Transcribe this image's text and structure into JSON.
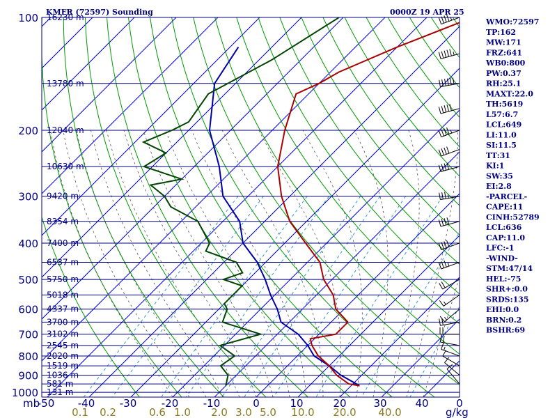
{
  "header": {
    "station": "KMFR (72597) Sounding",
    "time": "0000Z 19 APR 25"
  },
  "indices": [
    "WMO:72597",
    "TP:162",
    "MW:171",
    "FRZ:641",
    "WB0:800",
    "PW:0.37",
    "RH:25.1",
    "MAXT:22.0",
    "TH:5619",
    "L57:6.7",
    "LCL:649",
    "LI:11.0",
    "SI:11.5",
    "TT:31",
    "KI:1",
    "SW:35",
    "EI:2.8",
    "-PARCEL-",
    "CAPE:11",
    "CINH:52789",
    "LCL:636",
    "CAP:11.0",
    "LFC:-1",
    "-WIND-",
    "STM:47/14",
    "HEL:-75",
    "SHR+:0.0",
    "SRDS:135",
    "EHI:0.0",
    "BRN:0.2",
    "BSHR:69"
  ],
  "colors": {
    "isobar": "#000080",
    "isotherm": "#0000cd",
    "dry_adiabat": "#009900",
    "moist_adiabat": "#555555",
    "mixing_ratio": "#3399cc",
    "temperature": "#aa0000",
    "dewpoint": "#004400",
    "parcel": "#0000aa"
  },
  "chart_data": {
    "type": "skew-t",
    "title": "KMFR (72597) Sounding",
    "pressure_ticks": [
      "100",
      "200",
      "300",
      "400",
      "500",
      "600",
      "700",
      "800",
      "900",
      "1000"
    ],
    "pressure_unit": "mb",
    "temperature_ticks": [
      "-50",
      "-40",
      "-30",
      "-20",
      "-10",
      "0",
      "10",
      "20",
      "30",
      "40",
      "0"
    ],
    "mixing_ratio_ticks": [
      "0.1",
      "0.2",
      "0.6",
      "1.0",
      "2.0",
      "3.0",
      "5.0",
      "10.0",
      "20.0",
      "40.0"
    ],
    "mixing_ratio_unit": "g/kg",
    "height_levels": [
      {
        "p": 100,
        "label": "16230 m"
      },
      {
        "p": 150,
        "label": "13780 m"
      },
      {
        "p": 200,
        "label": "12040 m"
      },
      {
        "p": 250,
        "label": "10630 m"
      },
      {
        "p": 300,
        "label": "9420 m"
      },
      {
        "p": 350,
        "label": "8354 m"
      },
      {
        "p": 400,
        "label": "7400 m"
      },
      {
        "p": 450,
        "label": "6537 m"
      },
      {
        "p": 500,
        "label": "5750 m"
      },
      {
        "p": 550,
        "label": "5018 m"
      },
      {
        "p": 600,
        "label": "4337 m"
      },
      {
        "p": 650,
        "label": "3700 m"
      },
      {
        "p": 700,
        "label": "3102 m"
      },
      {
        "p": 750,
        "label": "2545 m"
      },
      {
        "p": 800,
        "label": "2020 m"
      },
      {
        "p": 850,
        "label": "1519 m"
      },
      {
        "p": 900,
        "label": "1036 m"
      },
      {
        "p": 950,
        "label": "581 m"
      },
      {
        "p": 1000,
        "label": "131 m"
      }
    ],
    "temperature_profile": [
      {
        "p": 100,
        "t": -39
      },
      {
        "p": 120,
        "t": -50
      },
      {
        "p": 140,
        "t": -58
      },
      {
        "p": 150,
        "t": -60
      },
      {
        "p": 160,
        "t": -63
      },
      {
        "p": 200,
        "t": -57
      },
      {
        "p": 250,
        "t": -50
      },
      {
        "p": 300,
        "t": -42
      },
      {
        "p": 350,
        "t": -34
      },
      {
        "p": 400,
        "t": -25
      },
      {
        "p": 450,
        "t": -17
      },
      {
        "p": 500,
        "t": -12
      },
      {
        "p": 550,
        "t": -6
      },
      {
        "p": 600,
        "t": -2
      },
      {
        "p": 650,
        "t": 4
      },
      {
        "p": 700,
        "t": 4
      },
      {
        "p": 720,
        "t": -1
      },
      {
        "p": 750,
        "t": 1
      },
      {
        "p": 800,
        "t": 5
      },
      {
        "p": 850,
        "t": 10
      },
      {
        "p": 900,
        "t": 14
      },
      {
        "p": 950,
        "t": 19
      },
      {
        "p": 960,
        "t": 22
      }
    ],
    "dewpoint_profile": [
      {
        "p": 100,
        "t": -71
      },
      {
        "p": 130,
        "t": -77
      },
      {
        "p": 160,
        "t": -84
      },
      {
        "p": 190,
        "t": -82
      },
      {
        "p": 200,
        "t": -84
      },
      {
        "p": 215,
        "t": -88
      },
      {
        "p": 230,
        "t": -80
      },
      {
        "p": 250,
        "t": -82
      },
      {
        "p": 270,
        "t": -70
      },
      {
        "p": 280,
        "t": -76
      },
      {
        "p": 300,
        "t": -70
      },
      {
        "p": 320,
        "t": -66
      },
      {
        "p": 350,
        "t": -56
      },
      {
        "p": 400,
        "t": -48
      },
      {
        "p": 420,
        "t": -47
      },
      {
        "p": 450,
        "t": -37
      },
      {
        "p": 480,
        "t": -33
      },
      {
        "p": 500,
        "t": -36
      },
      {
        "p": 520,
        "t": -30
      },
      {
        "p": 550,
        "t": -30
      },
      {
        "p": 580,
        "t": -30
      },
      {
        "p": 600,
        "t": -28
      },
      {
        "p": 650,
        "t": -26
      },
      {
        "p": 700,
        "t": -14
      },
      {
        "p": 750,
        "t": -21
      },
      {
        "p": 800,
        "t": -15
      },
      {
        "p": 850,
        "t": -16
      },
      {
        "p": 900,
        "t": -12
      },
      {
        "p": 960,
        "t": -10
      }
    ],
    "parcel_profile": [
      {
        "p": 120,
        "t": -88
      },
      {
        "p": 150,
        "t": -85
      },
      {
        "p": 200,
        "t": -75
      },
      {
        "p": 250,
        "t": -64
      },
      {
        "p": 300,
        "t": -56
      },
      {
        "p": 350,
        "t": -46
      },
      {
        "p": 400,
        "t": -40
      },
      {
        "p": 450,
        "t": -32
      },
      {
        "p": 500,
        "t": -26
      },
      {
        "p": 550,
        "t": -21
      },
      {
        "p": 600,
        "t": -16
      },
      {
        "p": 650,
        "t": -12
      },
      {
        "p": 700,
        "t": -5
      },
      {
        "p": 750,
        "t": 0
      },
      {
        "p": 800,
        "t": 4
      },
      {
        "p": 850,
        "t": 10
      },
      {
        "p": 900,
        "t": 15
      },
      {
        "p": 960,
        "t": 22
      }
    ],
    "wind_barbs": [
      {
        "p": 100,
        "dir": 250,
        "spd": 45
      },
      {
        "p": 125,
        "dir": 255,
        "spd": 55
      },
      {
        "p": 150,
        "dir": 260,
        "spd": 60
      },
      {
        "p": 175,
        "dir": 255,
        "spd": 50
      },
      {
        "p": 200,
        "dir": 250,
        "spd": 45
      },
      {
        "p": 225,
        "dir": 250,
        "spd": 40
      },
      {
        "p": 250,
        "dir": 255,
        "spd": 40
      },
      {
        "p": 300,
        "dir": 260,
        "spd": 35
      },
      {
        "p": 350,
        "dir": 255,
        "spd": 40
      },
      {
        "p": 400,
        "dir": 250,
        "spd": 40
      },
      {
        "p": 450,
        "dir": 250,
        "spd": 35
      },
      {
        "p": 500,
        "dir": 240,
        "spd": 20
      },
      {
        "p": 550,
        "dir": 235,
        "spd": 15
      },
      {
        "p": 600,
        "dir": 230,
        "spd": 15
      },
      {
        "p": 650,
        "dir": 260,
        "spd": 20
      },
      {
        "p": 700,
        "dir": 270,
        "spd": 20
      },
      {
        "p": 750,
        "dir": 280,
        "spd": 20
      },
      {
        "p": 800,
        "dir": 290,
        "spd": 15
      },
      {
        "p": 850,
        "dir": 300,
        "spd": 10
      },
      {
        "p": 900,
        "dir": 310,
        "spd": 10
      },
      {
        "p": 950,
        "dir": 320,
        "spd": 10
      }
    ]
  }
}
